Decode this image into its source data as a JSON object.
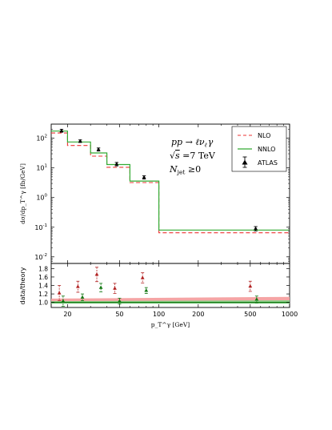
{
  "chart_data": {
    "type": "line",
    "x_scale": "log",
    "x_range": [
      15,
      1000
    ],
    "x_ticks": [
      "20",
      "50",
      "100",
      "200",
      "500",
      "1000"
    ],
    "x_tick_values": [
      20,
      50,
      100,
      200,
      500,
      1000
    ],
    "xlabel": "p_T^γ [GeV]",
    "bin_edges": [
      15,
      20,
      30,
      40,
      60,
      100,
      1000
    ],
    "colors": {
      "nlo": "#ee3333",
      "nnlo": "#33aa33",
      "atlas": "#000000",
      "ratio_nlo": "#b22222",
      "ratio_nnlo": "#117711",
      "band_nlo": "#f4a0a0",
      "band_nnlo": "#8bd38b"
    },
    "top_panel": {
      "y_scale": "log",
      "y_range": [
        0.006,
        300
      ],
      "ylabel": "dσ/dp_T^γ [fb/GeV]",
      "y_tick_labels": [
        {
          "value": 100,
          "base": "10",
          "exp": "2"
        },
        {
          "value": 10,
          "base": "10",
          "exp": "1"
        },
        {
          "value": 1,
          "base": "10",
          "exp": "0"
        },
        {
          "value": 0.1,
          "base": "10",
          "exp": "-1"
        },
        {
          "value": 0.01,
          "base": "10",
          "exp": "-2"
        }
      ],
      "series": [
        {
          "name": "NLO",
          "style": "dashed",
          "values": [
            150,
            57,
            25,
            10.5,
            3.2,
            0.065
          ]
        },
        {
          "name": "NNLO",
          "style": "solid",
          "values": [
            175,
            75,
            32,
            13,
            3.6,
            0.08
          ]
        }
      ],
      "data_points": {
        "name": "ATLAS",
        "x": [
          18,
          25,
          34.5,
          47.5,
          77,
          550
        ],
        "y": [
          180,
          80,
          42,
          13.5,
          4.8,
          0.09
        ],
        "y_err_low": [
          20,
          8,
          5,
          1.8,
          0.6,
          0.015
        ],
        "y_err_high": [
          20,
          8,
          5,
          1.8,
          0.6,
          0.015
        ]
      },
      "process": {
        "lhs": "pp",
        "arrow": "→",
        "l": "ℓ",
        "nu": "ν",
        "nu_sub": "ℓ",
        "gamma": "γ"
      },
      "energy": {
        "sym": "s",
        "eq": " =7 TeV"
      },
      "njet": {
        "N": "N",
        "sub": "jet",
        "rel": " ≥0"
      },
      "legend_position": "top-right"
    },
    "bottom_panel": {
      "ylabel": "data/theory",
      "y_range": [
        0.88,
        1.92
      ],
      "y_ticks": [
        "1.8",
        "1.6",
        "1.4",
        "1.2",
        "1.0"
      ],
      "y_tick_values": [
        1.8,
        1.6,
        1.4,
        1.2,
        1.0
      ],
      "ratio_nlo": {
        "x": [
          17.3,
          24,
          33.5,
          46,
          75,
          500
        ],
        "y": [
          1.22,
          1.37,
          1.66,
          1.33,
          1.58,
          1.38
        ],
        "err": [
          0.18,
          0.13,
          0.17,
          0.12,
          0.12,
          0.12
        ]
      },
      "ratio_nnlo": {
        "x": [
          18.5,
          26,
          36,
          50,
          80,
          560
        ],
        "y": [
          1.03,
          1.12,
          1.35,
          1.03,
          1.28,
          1.07
        ],
        "err": [
          0.12,
          0.08,
          0.1,
          0.07,
          0.07,
          0.08
        ]
      },
      "band_nlo": {
        "lower": 1.02,
        "upper_start": 1.09,
        "upper_end": 1.13
      },
      "band_nnlo": {
        "lower": 0.97,
        "upper_start": 1.03,
        "upper_end": 1.05
      }
    }
  }
}
